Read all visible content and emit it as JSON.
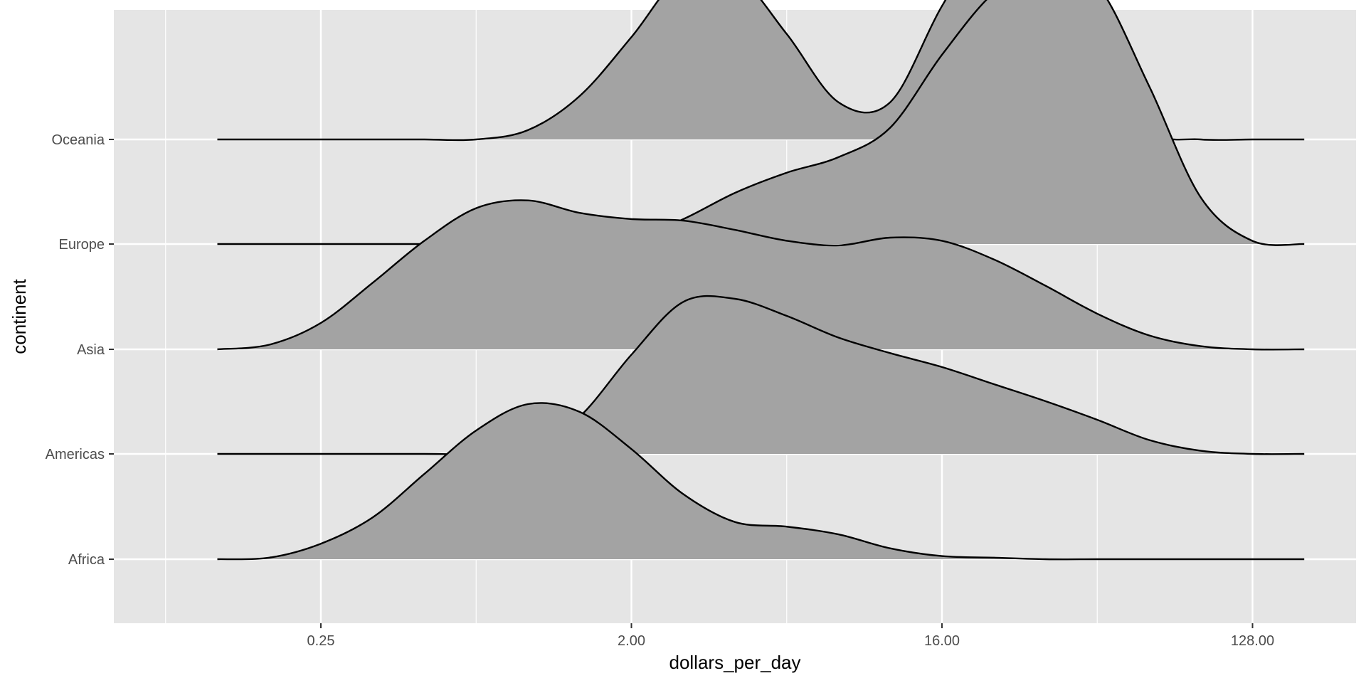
{
  "chart_data": {
    "type": "area",
    "subtype": "ridgeline-density",
    "title": "",
    "xlabel": "dollars_per_day",
    "ylabel": "continent",
    "x_scale": "log2",
    "xlim": [
      0.0625,
      256
    ],
    "x_ticks": [
      0.25,
      2,
      16,
      128
    ],
    "x_tick_labels": [
      "0.25",
      "2.00",
      "16.00",
      "128.00"
    ],
    "y_categories": [
      "Africa",
      "Americas",
      "Asia",
      "Europe",
      "Oceania"
    ],
    "grid": true,
    "legend": "none",
    "colors": {
      "panel": "#e5e5e5",
      "grid": "#ffffff",
      "fill": "#a3a3a3",
      "line": "#000000"
    },
    "x": [
      0.125,
      0.177,
      0.25,
      0.354,
      0.5,
      0.707,
      1.0,
      1.414,
      2.0,
      2.828,
      4.0,
      5.657,
      8.0,
      11.31,
      16.0,
      22.63,
      32.0,
      45.25,
      64.0,
      90.51,
      128.0,
      181.0
    ],
    "series": [
      {
        "name": "Africa",
        "values": [
          0.0,
          0.01,
          0.1,
          0.27,
          0.55,
          0.83,
          1.0,
          0.95,
          0.71,
          0.42,
          0.24,
          0.21,
          0.16,
          0.07,
          0.02,
          0.01,
          0.0,
          0.0,
          0.0,
          0.0,
          0.0,
          0.0
        ]
      },
      {
        "name": "Americas",
        "values": [
          0.0,
          0.0,
          0.0,
          0.0,
          0.0,
          0.0,
          0.02,
          0.24,
          0.64,
          0.98,
          1.0,
          0.89,
          0.75,
          0.65,
          0.56,
          0.45,
          0.34,
          0.22,
          0.09,
          0.02,
          0.0,
          0.0
        ]
      },
      {
        "name": "Asia",
        "values": [
          0.0,
          0.03,
          0.17,
          0.43,
          0.7,
          0.91,
          0.96,
          0.88,
          0.84,
          0.83,
          0.77,
          0.7,
          0.67,
          0.72,
          0.7,
          0.58,
          0.41,
          0.23,
          0.09,
          0.02,
          0.0,
          0.0
        ]
      },
      {
        "name": "Europe",
        "values": [
          0.0,
          0.0,
          0.0,
          0.0,
          0.0,
          0.0,
          0.0,
          0.0,
          0.03,
          0.16,
          0.33,
          0.46,
          0.56,
          0.75,
          1.22,
          1.62,
          1.81,
          1.67,
          1.02,
          0.3,
          0.02,
          0.0
        ]
      },
      {
        "name": "Oceania",
        "values": [
          0.0,
          0.0,
          0.0,
          0.0,
          0.0,
          0.0,
          0.06,
          0.28,
          0.66,
          1.07,
          1.07,
          0.68,
          0.24,
          0.24,
          0.86,
          1.36,
          1.22,
          0.46,
          0.05,
          0.0,
          0.0,
          0.0
        ]
      }
    ]
  }
}
